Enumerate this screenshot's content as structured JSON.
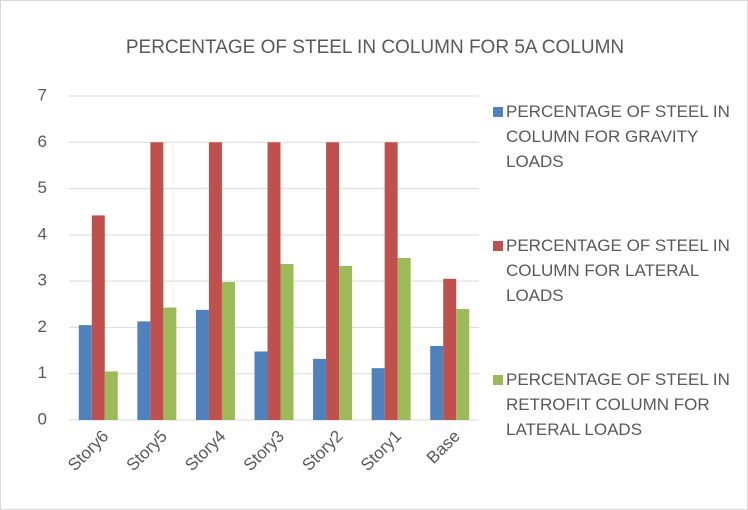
{
  "chart_data": {
    "type": "bar",
    "title": "PERCENTAGE OF STEEL IN COLUMN FOR 5A COLUMN",
    "categories": [
      "Story6",
      "Story5",
      "Story4",
      "Story3",
      "Story2",
      "Story1",
      "Base"
    ],
    "series": [
      {
        "name": "PERCENTAGE OF STEEL IN COLUMN FOR GRAVITY LOADS",
        "color": "#4f81bd",
        "values": [
          2.05,
          2.13,
          2.38,
          1.48,
          1.32,
          1.12,
          1.6
        ]
      },
      {
        "name": "PERCENTAGE OF STEEL IN COLUMN FOR LATERAL LOADS",
        "color": "#c0504d",
        "values": [
          4.42,
          6,
          6,
          6,
          6,
          6,
          3.05
        ]
      },
      {
        "name": "PERCENTAGE OF STEEL IN RETROFIT COLUMN FOR LATERAL LOADS",
        "color": "#9bbb59",
        "values": [
          1.05,
          2.43,
          2.98,
          3.37,
          3.33,
          3.5,
          2.4
        ]
      }
    ],
    "ylim": [
      0,
      7
    ],
    "yticks": [
      0,
      1,
      2,
      3,
      4,
      5,
      6,
      7
    ],
    "grid": true,
    "legend": "right"
  }
}
